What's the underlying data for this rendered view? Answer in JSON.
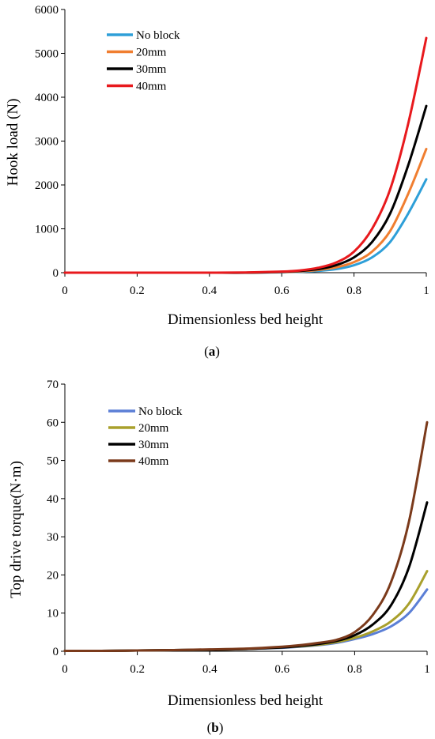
{
  "chart_data": [
    {
      "type": "line",
      "panel_label": "a",
      "xlabel": "Dimensionless bed height",
      "ylabel": "Hook load (N)",
      "xlim": [
        0,
        1
      ],
      "ylim": [
        0,
        6000
      ],
      "xticks": [
        "0",
        "0.2",
        "0.4",
        "0.6",
        "0.8",
        "1"
      ],
      "yticks": [
        "0",
        "1000",
        "2000",
        "3000",
        "4000",
        "5000",
        "6000"
      ],
      "grid": false,
      "legend": "top-left",
      "x": [
        0,
        0.1,
        0.2,
        0.3,
        0.4,
        0.5,
        0.6,
        0.65,
        0.7,
        0.75,
        0.8,
        0.85,
        0.9,
        0.95,
        1.0
      ],
      "series": [
        {
          "name": "No block",
          "color": "#2E9FD8",
          "values": [
            0,
            0,
            0,
            0,
            0,
            0,
            10,
            20,
            40,
            80,
            170,
            350,
            700,
            1350,
            2130
          ]
        },
        {
          "name": "20mm",
          "color": "#F07E30",
          "values": [
            0,
            0,
            0,
            0,
            0,
            0,
            15,
            30,
            60,
            120,
            240,
            480,
            950,
            1800,
            2820
          ]
        },
        {
          "name": "30mm",
          "color": "#000000",
          "values": [
            0,
            0,
            0,
            0,
            0,
            0,
            20,
            40,
            80,
            170,
            350,
            700,
            1350,
            2450,
            3800
          ]
        },
        {
          "name": "40mm",
          "color": "#E8191D",
          "values": [
            0,
            0,
            0,
            0,
            0,
            5,
            25,
            50,
            110,
            230,
            480,
            1000,
            1900,
            3400,
            5350
          ]
        }
      ]
    },
    {
      "type": "line",
      "panel_label": "b",
      "xlabel": "Dimensionless bed height",
      "ylabel": "Top drive torque(N·m)",
      "xlim": [
        0,
        1
      ],
      "ylim": [
        0,
        70
      ],
      "xticks": [
        "0",
        "0.2",
        "0.4",
        "0.6",
        "0.8",
        "1"
      ],
      "yticks": [
        "0",
        "10",
        "20",
        "30",
        "40",
        "50",
        "60",
        "70"
      ],
      "grid": false,
      "legend": "top-left",
      "x": [
        0,
        0.1,
        0.2,
        0.3,
        0.4,
        0.5,
        0.6,
        0.65,
        0.7,
        0.75,
        0.8,
        0.85,
        0.9,
        0.95,
        1.0
      ],
      "series": [
        {
          "name": "No block",
          "color": "#5B7FD6",
          "values": [
            0.1,
            0.1,
            0.2,
            0.3,
            0.4,
            0.6,
            0.9,
            1.2,
            1.6,
            2.2,
            3.2,
            4.5,
            6.5,
            10.0,
            16.2
          ]
        },
        {
          "name": "20mm",
          "color": "#A9A02C",
          "values": [
            0.1,
            0.1,
            0.2,
            0.3,
            0.4,
            0.6,
            1.0,
            1.3,
            1.7,
            2.4,
            3.5,
            5.2,
            7.8,
            12.5,
            21.0
          ]
        },
        {
          "name": "30mm",
          "color": "#000000",
          "values": [
            0.1,
            0.1,
            0.2,
            0.3,
            0.4,
            0.6,
            1.0,
            1.4,
            1.9,
            2.7,
            4.2,
            7.0,
            12.0,
            22.0,
            39.0
          ]
        },
        {
          "name": "40mm",
          "color": "#7B3A1B",
          "values": [
            0.1,
            0.1,
            0.2,
            0.3,
            0.5,
            0.7,
            1.2,
            1.6,
            2.2,
            3.0,
            5.0,
            9.5,
            18.0,
            34.0,
            60.0
          ]
        }
      ]
    }
  ]
}
